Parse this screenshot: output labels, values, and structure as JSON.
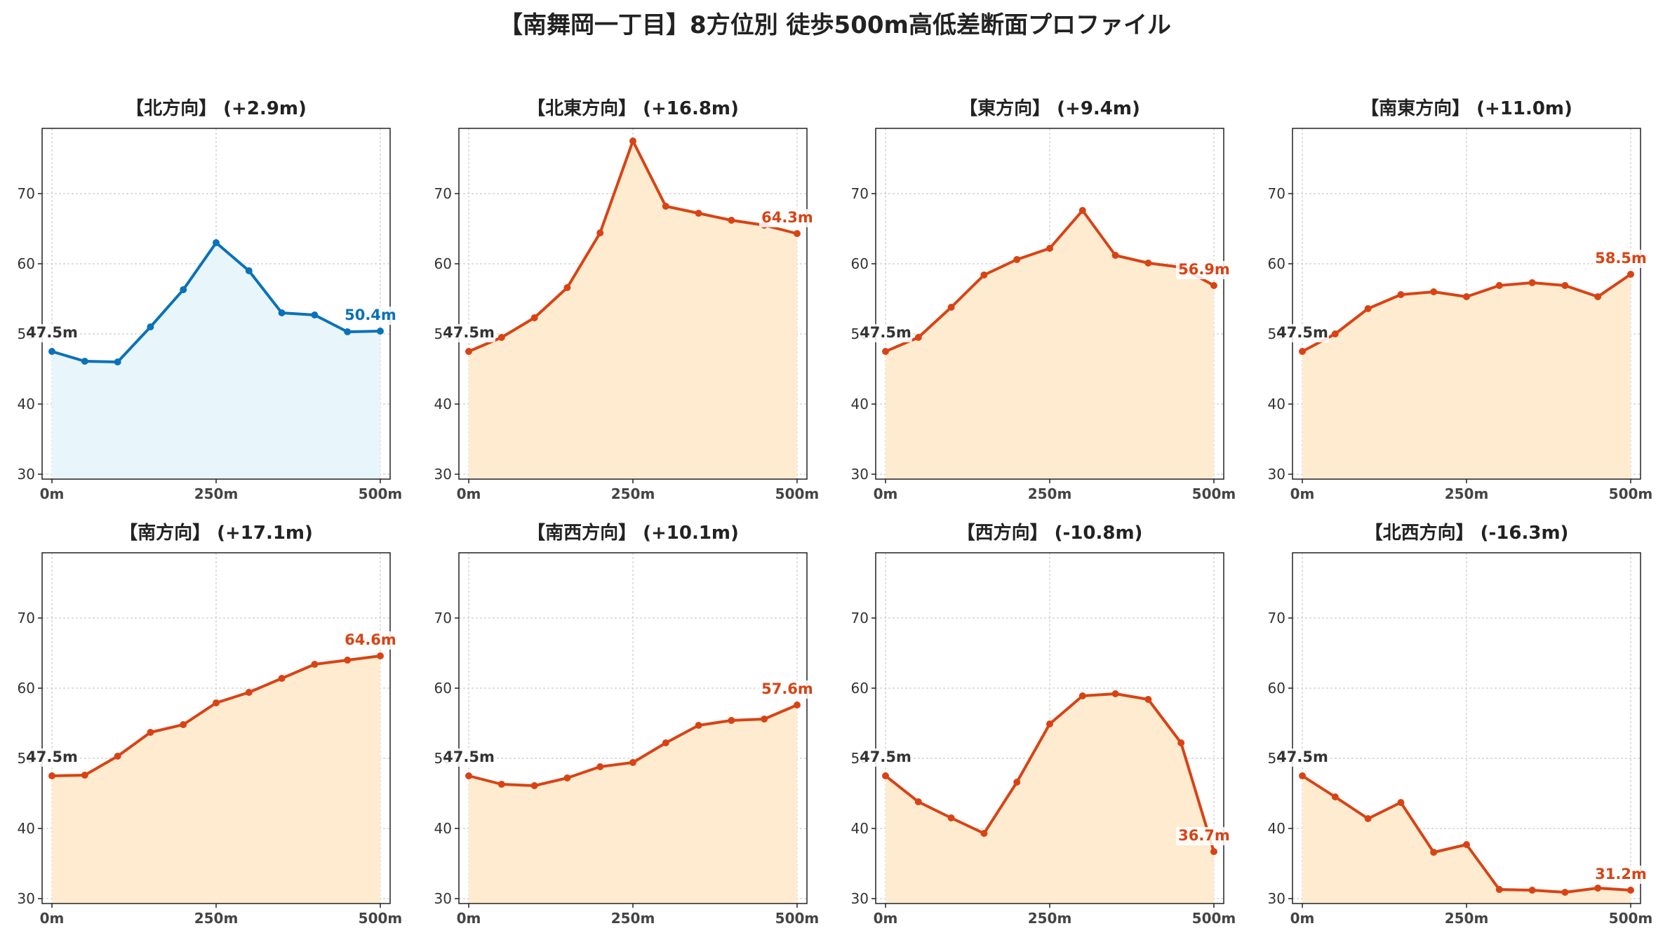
{
  "figure": {
    "title": "【南舞岡一丁目】8方位別 徒歩500m高低差断面プロファイル"
  },
  "colors": {
    "up_line": "#d84315",
    "up_fill": "#ffecd0",
    "flat_line": "#0a72b8",
    "flat_fill": "#e8f5fb",
    "start_label": "#333333"
  },
  "chart_data": [
    {
      "type": "area",
      "title": "【北方向】 (+2.9m)",
      "x": [
        0,
        50,
        100,
        150,
        200,
        250,
        300,
        350,
        400,
        450,
        500
      ],
      "values": [
        47.5,
        46.1,
        46.0,
        51.0,
        56.3,
        63.0,
        59.0,
        53.0,
        52.7,
        50.3,
        50.4
      ],
      "start_label": "47.5m",
      "end_label": "50.4m",
      "color": "flat",
      "xticks": [
        "0m",
        "250m",
        "500m"
      ],
      "yticks": [
        "30",
        "40",
        "50",
        "60",
        "70"
      ],
      "xlim": [
        -15,
        515
      ],
      "ylim": [
        29.3,
        79.3
      ],
      "grid": true
    },
    {
      "type": "area",
      "title": "【北東方向】 (+16.8m)",
      "x": [
        0,
        50,
        100,
        150,
        200,
        250,
        300,
        350,
        400,
        450,
        500
      ],
      "values": [
        47.5,
        49.5,
        52.3,
        56.6,
        64.4,
        77.5,
        68.2,
        67.2,
        66.2,
        65.5,
        64.3
      ],
      "start_label": "47.5m",
      "end_label": "64.3m",
      "color": "up",
      "xticks": [
        "0m",
        "250m",
        "500m"
      ],
      "yticks": [
        "30",
        "40",
        "50",
        "60",
        "70"
      ],
      "xlim": [
        -15,
        515
      ],
      "ylim": [
        29.3,
        79.3
      ],
      "grid": true
    },
    {
      "type": "area",
      "title": "【東方向】 (+9.4m)",
      "x": [
        0,
        50,
        100,
        150,
        200,
        250,
        300,
        350,
        400,
        450,
        500
      ],
      "values": [
        47.5,
        49.5,
        53.8,
        58.4,
        60.6,
        62.2,
        67.6,
        61.2,
        60.1,
        59.5,
        56.9
      ],
      "start_label": "47.5m",
      "end_label": "56.9m",
      "color": "up",
      "xticks": [
        "0m",
        "250m",
        "500m"
      ],
      "yticks": [
        "30",
        "40",
        "50",
        "60",
        "70"
      ],
      "xlim": [
        -15,
        515
      ],
      "ylim": [
        29.3,
        79.3
      ],
      "grid": true
    },
    {
      "type": "area",
      "title": "【南東方向】 (+11.0m)",
      "x": [
        0,
        50,
        100,
        150,
        200,
        250,
        300,
        350,
        400,
        450,
        500
      ],
      "values": [
        47.5,
        50.0,
        53.6,
        55.6,
        56.0,
        55.3,
        56.9,
        57.3,
        56.9,
        55.3,
        58.5
      ],
      "start_label": "47.5m",
      "end_label": "58.5m",
      "color": "up",
      "xticks": [
        "0m",
        "250m",
        "500m"
      ],
      "yticks": [
        "30",
        "40",
        "50",
        "60",
        "70"
      ],
      "xlim": [
        -15,
        515
      ],
      "ylim": [
        29.3,
        79.3
      ],
      "grid": true
    },
    {
      "type": "area",
      "title": "【南方向】 (+17.1m)",
      "x": [
        0,
        50,
        100,
        150,
        200,
        250,
        300,
        350,
        400,
        450,
        500
      ],
      "values": [
        47.5,
        47.6,
        50.3,
        53.7,
        54.8,
        57.9,
        59.4,
        61.4,
        63.4,
        64.0,
        64.6
      ],
      "start_label": "47.5m",
      "end_label": "64.6m",
      "color": "up",
      "xticks": [
        "0m",
        "250m",
        "500m"
      ],
      "yticks": [
        "30",
        "40",
        "50",
        "60",
        "70"
      ],
      "xlim": [
        -15,
        515
      ],
      "ylim": [
        29.3,
        79.3
      ],
      "grid": true
    },
    {
      "type": "area",
      "title": "【南西方向】 (+10.1m)",
      "x": [
        0,
        50,
        100,
        150,
        200,
        250,
        300,
        350,
        400,
        450,
        500
      ],
      "values": [
        47.5,
        46.3,
        46.1,
        47.2,
        48.8,
        49.4,
        52.2,
        54.7,
        55.4,
        55.6,
        57.6
      ],
      "start_label": "47.5m",
      "end_label": "57.6m",
      "color": "up",
      "xticks": [
        "0m",
        "250m",
        "500m"
      ],
      "yticks": [
        "30",
        "40",
        "50",
        "60",
        "70"
      ],
      "xlim": [
        -15,
        515
      ],
      "ylim": [
        29.3,
        79.3
      ],
      "grid": true
    },
    {
      "type": "area",
      "title": "【西方向】 (-10.8m)",
      "x": [
        0,
        50,
        100,
        150,
        200,
        250,
        300,
        350,
        400,
        450,
        500
      ],
      "values": [
        47.5,
        43.8,
        41.5,
        39.3,
        46.6,
        54.9,
        58.9,
        59.2,
        58.4,
        52.2,
        36.7
      ],
      "start_label": "47.5m",
      "end_label": "36.7m",
      "color": "up",
      "xticks": [
        "0m",
        "250m",
        "500m"
      ],
      "yticks": [
        "30",
        "40",
        "50",
        "60",
        "70"
      ],
      "xlim": [
        -15,
        515
      ],
      "ylim": [
        29.3,
        79.3
      ],
      "grid": true
    },
    {
      "type": "area",
      "title": "【北西方向】 (-16.3m)",
      "x": [
        0,
        50,
        100,
        150,
        200,
        250,
        300,
        350,
        400,
        450,
        500
      ],
      "values": [
        47.5,
        44.5,
        41.4,
        43.7,
        36.6,
        37.7,
        31.3,
        31.2,
        30.9,
        31.5,
        31.2
      ],
      "start_label": "47.5m",
      "end_label": "31.2m",
      "color": "up",
      "xticks": [
        "0m",
        "250m",
        "500m"
      ],
      "yticks": [
        "30",
        "40",
        "50",
        "60",
        "70"
      ],
      "xlim": [
        -15,
        515
      ],
      "ylim": [
        29.3,
        79.3
      ],
      "grid": true
    }
  ]
}
